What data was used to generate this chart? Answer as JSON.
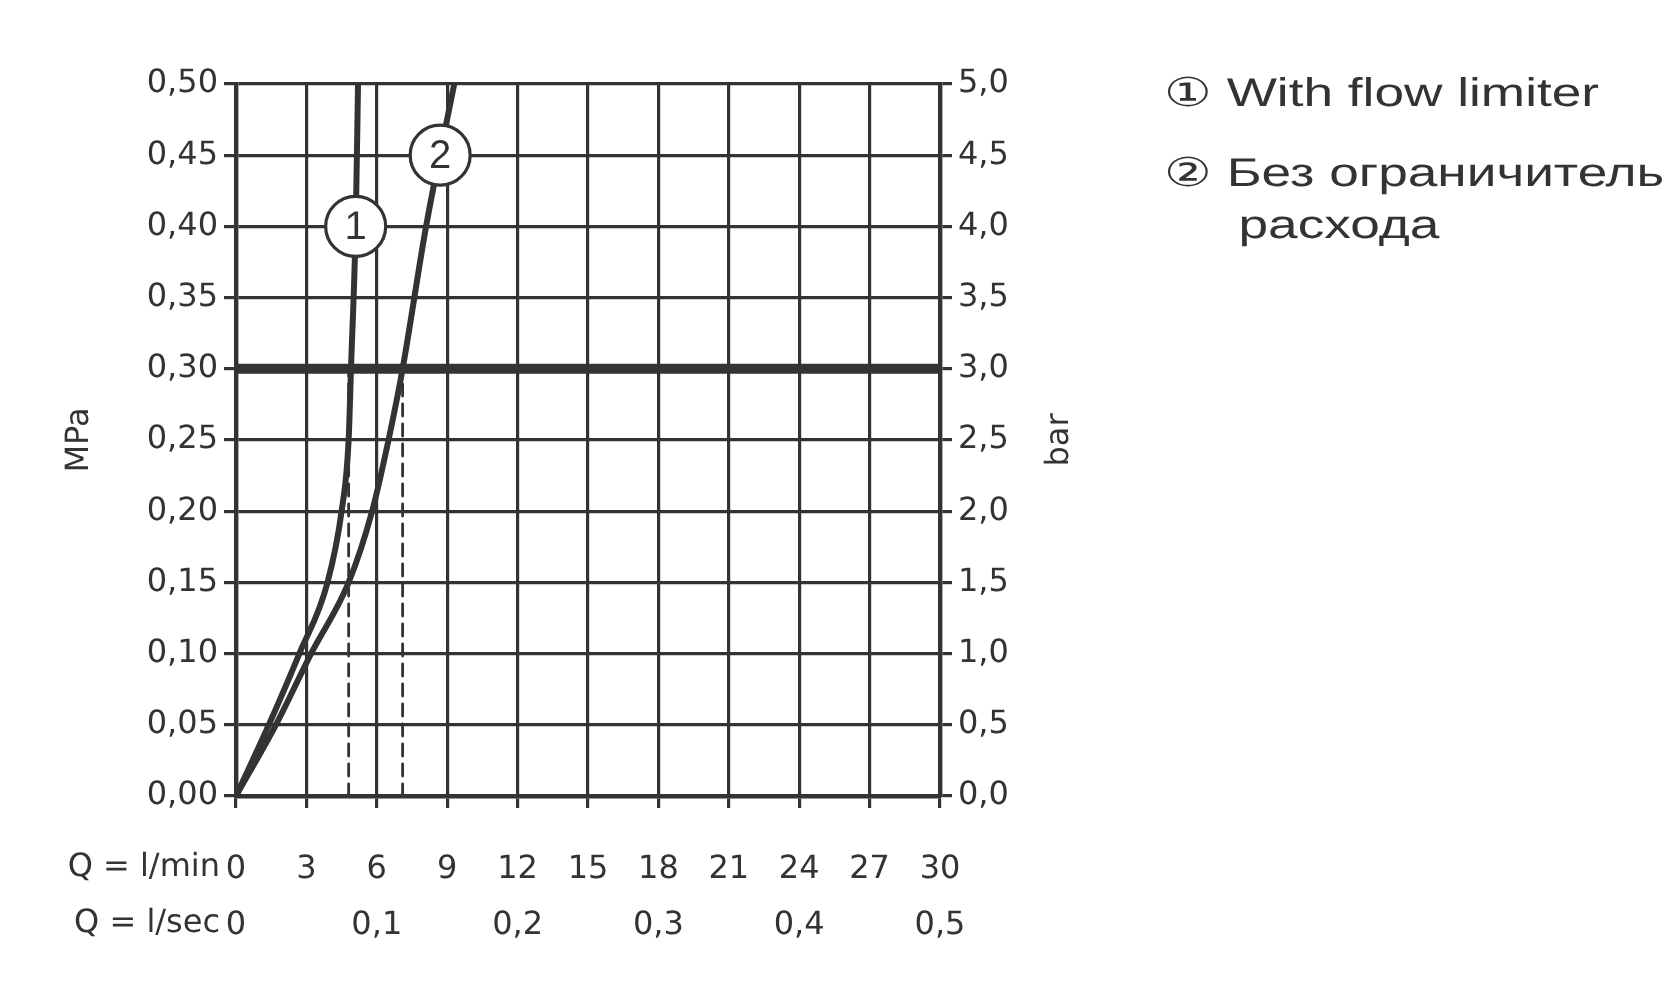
{
  "chart_data": {
    "type": "line",
    "xlabel": "Q = l/min",
    "x2label": "Q = l/sec",
    "ylabel": "MPa",
    "y2label": "bar",
    "series": [
      {
        "name": "① With flow limiter",
        "color": "#333333",
        "x": [
          0,
          1.4,
          2.7,
          3.9,
          4.5,
          4.8,
          4.9,
          5.1,
          5.2
        ],
        "values": [
          0,
          0.05,
          0.1,
          0.15,
          0.2,
          0.25,
          0.3,
          0.4,
          0.5
        ]
      },
      {
        "name": "② Без ограничитель расхода",
        "color": "#333333",
        "x": [
          0,
          1.7,
          3.2,
          4.8,
          5.8,
          6.5,
          7.1,
          8.1,
          9.3
        ],
        "values": [
          0,
          0.05,
          0.1,
          0.15,
          0.2,
          0.25,
          0.3,
          0.4,
          0.5
        ]
      },
      {
        "color": "#333333",
        "line_style": "dashed",
        "x": [
          4.8,
          4.8
        ],
        "values": [
          0,
          0.3
        ]
      },
      {
        "color": "#333333",
        "line_style": "dashed",
        "x": [
          7.1,
          7.1
        ],
        "values": [
          0,
          0.3
        ]
      }
    ],
    "xlim": [
      0,
      30
    ],
    "xticks": [
      0,
      3,
      6,
      9,
      12,
      15,
      18,
      21,
      24,
      27,
      30
    ],
    "x2lim": [
      0,
      0.5
    ],
    "x2ticks": [
      0,
      {
        "value": 0.1,
        "label": "0,1"
      },
      {
        "value": 0.2,
        "label": "0,2"
      },
      {
        "value": 0.3,
        "label": "0,3"
      },
      {
        "value": 0.4,
        "label": "0,4"
      },
      {
        "value": 0.5,
        "label": "0,5"
      }
    ],
    "ylim": [
      0,
      0.5
    ],
    "yticks": [
      {
        "value": 0,
        "label": "0,00"
      },
      {
        "value": 0.05,
        "label": "0,05"
      },
      {
        "value": 0.1,
        "label": "0,10"
      },
      {
        "value": 0.15,
        "label": "0,15"
      },
      {
        "value": 0.2,
        "label": "0,20"
      },
      {
        "value": 0.25,
        "label": "0,25"
      },
      {
        "value": 0.3,
        "label": "0,30"
      },
      {
        "value": 0.35,
        "label": "0,35"
      },
      {
        "value": 0.4,
        "label": "0,40"
      },
      {
        "value": 0.45,
        "label": "0,45"
      },
      {
        "value": 0.5,
        "label": "0,50"
      }
    ],
    "y2lim": [
      0,
      5
    ],
    "y2ticks": [
      {
        "value": 0,
        "label": "0,0"
      },
      {
        "value": 0.5,
        "label": "0,5"
      },
      {
        "value": 1,
        "label": "1,0"
      },
      {
        "value": 1.5,
        "label": "1,5"
      },
      {
        "value": 2,
        "label": "2,0"
      },
      {
        "value": 2.5,
        "label": "2,5"
      },
      {
        "value": 3,
        "label": "3,0"
      },
      {
        "value": 3.5,
        "label": "3,5"
      },
      {
        "value": 4,
        "label": "4,0"
      },
      {
        "value": 4.5,
        "label": "4,5"
      },
      {
        "value": 5,
        "label": "5,0"
      }
    ],
    "ref_lines": [
      {
        "axis": "y",
        "value": 0.3,
        "color": "#333333"
      }
    ],
    "annotations": [
      {
        "text": "1",
        "x": 5.1,
        "y": 0.4
      },
      {
        "text": "2",
        "x": 8.7,
        "y": 0.45
      }
    ],
    "grid": true,
    "legend": "right",
    "marker": "none",
    "line_style": "solid"
  }
}
